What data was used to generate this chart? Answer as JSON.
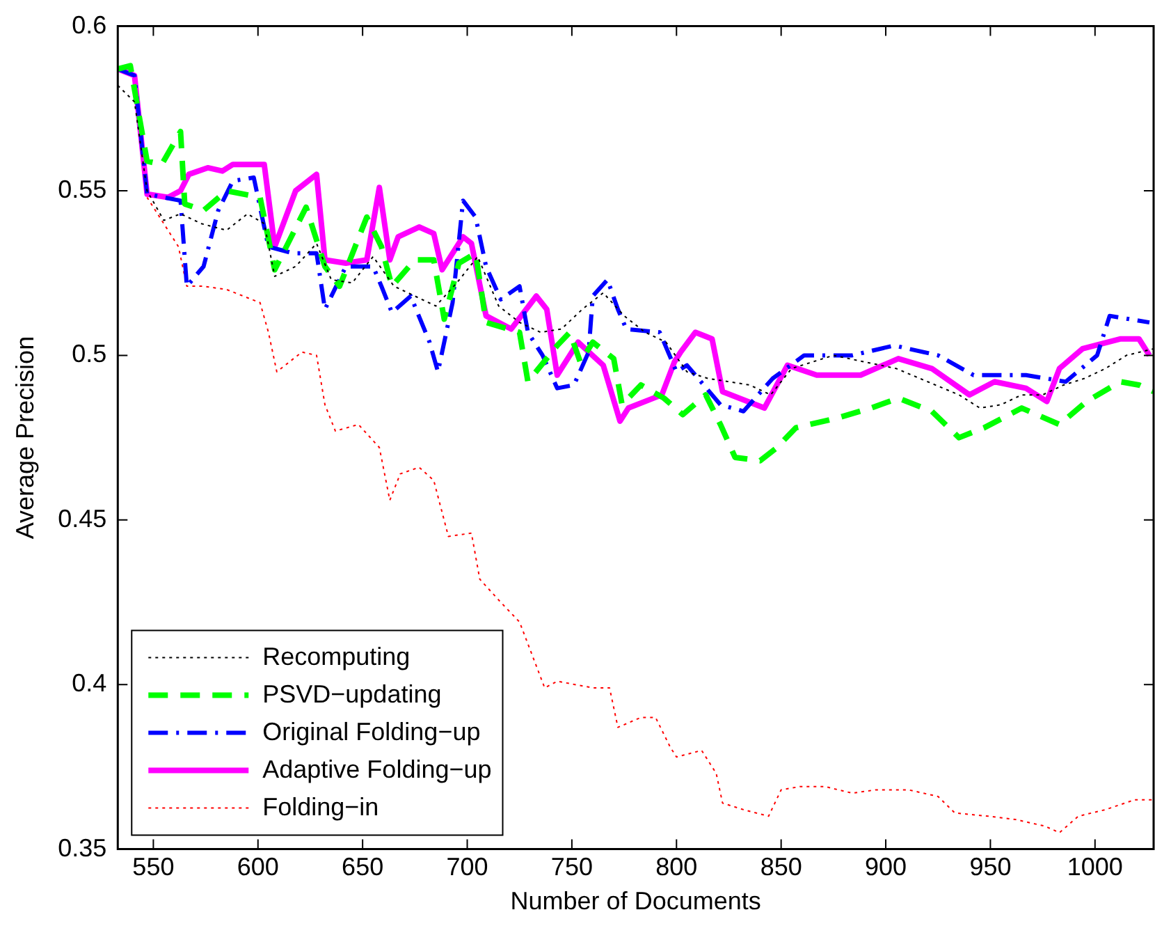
{
  "chart_data": {
    "type": "line",
    "xlabel": "Number of Documents",
    "ylabel": "Average Precision",
    "xlim": [
      533,
      1028
    ],
    "xticks": [
      550,
      600,
      650,
      700,
      750,
      800,
      850,
      900,
      950,
      1000
    ],
    "ylim": [
      0.35,
      0.6
    ],
    "yticks": [
      0.35,
      0.4,
      0.45,
      0.5,
      0.55,
      0.6
    ],
    "grid": false,
    "legend": "bottom left",
    "marker": "none",
    "series": [
      {
        "name": "Recomputing",
        "color": "#000000",
        "line_style": "dotted",
        "x": [
          533,
          541,
          547,
          555,
          563,
          573,
          585,
          595,
          603,
          608,
          618,
          628,
          635,
          645,
          655,
          665,
          675,
          685,
          695,
          705,
          715,
          725,
          735,
          745,
          755,
          765,
          775,
          785,
          795,
          805,
          815,
          825,
          835,
          845,
          855,
          865,
          875,
          890,
          905,
          920,
          935,
          945,
          955,
          965,
          975,
          985,
          995,
          1005,
          1015,
          1028
        ],
        "values": [
          0.582,
          0.577,
          0.55,
          0.541,
          0.543,
          0.54,
          0.538,
          0.543,
          0.54,
          0.524,
          0.527,
          0.534,
          0.523,
          0.522,
          0.53,
          0.521,
          0.518,
          0.515,
          0.522,
          0.53,
          0.515,
          0.51,
          0.507,
          0.508,
          0.514,
          0.519,
          0.512,
          0.507,
          0.504,
          0.495,
          0.493,
          0.492,
          0.491,
          0.488,
          0.496,
          0.498,
          0.5,
          0.498,
          0.496,
          0.492,
          0.488,
          0.484,
          0.485,
          0.488,
          0.488,
          0.491,
          0.493,
          0.496,
          0.5,
          0.502
        ]
      },
      {
        "name": "PSVD−updating",
        "color": "#00ff00",
        "line_style": "dashed",
        "x": [
          533,
          539,
          547,
          554,
          563,
          565,
          574,
          585,
          601,
          608,
          623,
          632,
          639,
          652,
          659,
          664,
          675,
          684,
          689,
          696,
          704,
          709,
          725,
          729,
          743,
          749,
          754,
          760,
          770,
          774,
          783,
          794,
          803,
          814,
          821,
          828,
          840,
          848,
          857,
          877,
          893,
          906,
          922,
          935,
          947,
          965,
          983,
          996,
          1012,
          1021,
          1028
        ],
        "values": [
          0.587,
          0.588,
          0.559,
          0.558,
          0.568,
          0.546,
          0.544,
          0.55,
          0.548,
          0.526,
          0.545,
          0.527,
          0.521,
          0.542,
          0.533,
          0.521,
          0.529,
          0.529,
          0.511,
          0.528,
          0.531,
          0.51,
          0.507,
          0.492,
          0.503,
          0.507,
          0.498,
          0.504,
          0.499,
          0.485,
          0.491,
          0.487,
          0.482,
          0.488,
          0.479,
          0.469,
          0.468,
          0.472,
          0.478,
          0.481,
          0.484,
          0.487,
          0.483,
          0.475,
          0.478,
          0.484,
          0.479,
          0.486,
          0.492,
          0.491,
          0.489
        ]
      },
      {
        "name": "Original Folding−up",
        "color": "#0000ff",
        "line_style": "dashdot",
        "x": [
          533,
          541,
          547,
          563,
          566,
          574,
          581,
          588,
          598,
          605,
          617,
          628,
          632,
          642,
          655,
          659,
          664,
          673,
          682,
          686,
          693,
          698,
          704,
          709,
          716,
          725,
          729,
          736,
          743,
          751,
          758,
          760,
          767,
          772,
          776,
          792,
          800,
          805,
          821,
          832,
          846,
          861,
          884,
          904,
          925,
          942,
          967,
          986,
          1001,
          1007,
          1026
        ],
        "values": [
          0.587,
          0.585,
          0.549,
          0.547,
          0.521,
          0.527,
          0.544,
          0.553,
          0.554,
          0.533,
          0.531,
          0.531,
          0.514,
          0.527,
          0.527,
          0.521,
          0.513,
          0.518,
          0.504,
          0.495,
          0.516,
          0.547,
          0.542,
          0.527,
          0.517,
          0.521,
          0.507,
          0.5,
          0.49,
          0.491,
          0.501,
          0.518,
          0.523,
          0.514,
          0.508,
          0.507,
          0.495,
          0.497,
          0.485,
          0.483,
          0.493,
          0.5,
          0.5,
          0.503,
          0.5,
          0.494,
          0.494,
          0.492,
          0.5,
          0.512,
          0.51
        ]
      },
      {
        "name": "Adaptive Folding−up",
        "color": "#ff00ff",
        "line_style": "solid",
        "x": [
          533,
          541,
          547,
          557,
          563,
          567,
          576,
          583,
          588,
          603,
          608,
          618,
          628,
          632,
          642,
          652,
          658,
          663,
          667,
          677,
          684,
          688,
          698,
          702,
          709,
          721,
          733,
          738,
          743,
          753,
          765,
          773,
          777,
          793,
          799,
          802,
          809,
          817,
          822,
          842,
          853,
          867,
          888,
          906,
          922,
          940,
          952,
          967,
          977,
          983,
          994,
          1012,
          1021,
          1026
        ],
        "values": [
          0.587,
          0.585,
          0.549,
          0.548,
          0.55,
          0.555,
          0.557,
          0.556,
          0.558,
          0.558,
          0.533,
          0.55,
          0.555,
          0.529,
          0.528,
          0.529,
          0.551,
          0.529,
          0.536,
          0.539,
          0.537,
          0.526,
          0.536,
          0.534,
          0.512,
          0.508,
          0.518,
          0.514,
          0.494,
          0.504,
          0.497,
          0.48,
          0.484,
          0.488,
          0.498,
          0.501,
          0.507,
          0.505,
          0.489,
          0.484,
          0.497,
          0.494,
          0.494,
          0.499,
          0.496,
          0.488,
          0.492,
          0.49,
          0.486,
          0.496,
          0.502,
          0.505,
          0.505,
          0.5
        ]
      },
      {
        "name": "Folding−in",
        "color": "#ff0000",
        "line_style": "dotted",
        "x": [
          547,
          555,
          562,
          566,
          574,
          585,
          601,
          605,
          609,
          615,
          621,
          628,
          632,
          637,
          648,
          658,
          663,
          668,
          677,
          684,
          691,
          702,
          706,
          716,
          725,
          737,
          743,
          760,
          768,
          772,
          783,
          790,
          797,
          800,
          812,
          819,
          822,
          832,
          844,
          850,
          859,
          871,
          884,
          895,
          911,
          925,
          933,
          949,
          962,
          976,
          983,
          992,
          1005,
          1019,
          1028
        ],
        "values": [
          0.548,
          0.54,
          0.533,
          0.521,
          0.521,
          0.52,
          0.516,
          0.507,
          0.495,
          0.498,
          0.501,
          0.5,
          0.485,
          0.477,
          0.479,
          0.472,
          0.456,
          0.464,
          0.466,
          0.462,
          0.445,
          0.446,
          0.432,
          0.425,
          0.419,
          0.399,
          0.401,
          0.399,
          0.399,
          0.387,
          0.39,
          0.39,
          0.381,
          0.378,
          0.38,
          0.373,
          0.364,
          0.362,
          0.36,
          0.368,
          0.369,
          0.369,
          0.367,
          0.368,
          0.368,
          0.366,
          0.361,
          0.36,
          0.359,
          0.357,
          0.355,
          0.36,
          0.362,
          0.365,
          0.365
        ]
      }
    ]
  }
}
